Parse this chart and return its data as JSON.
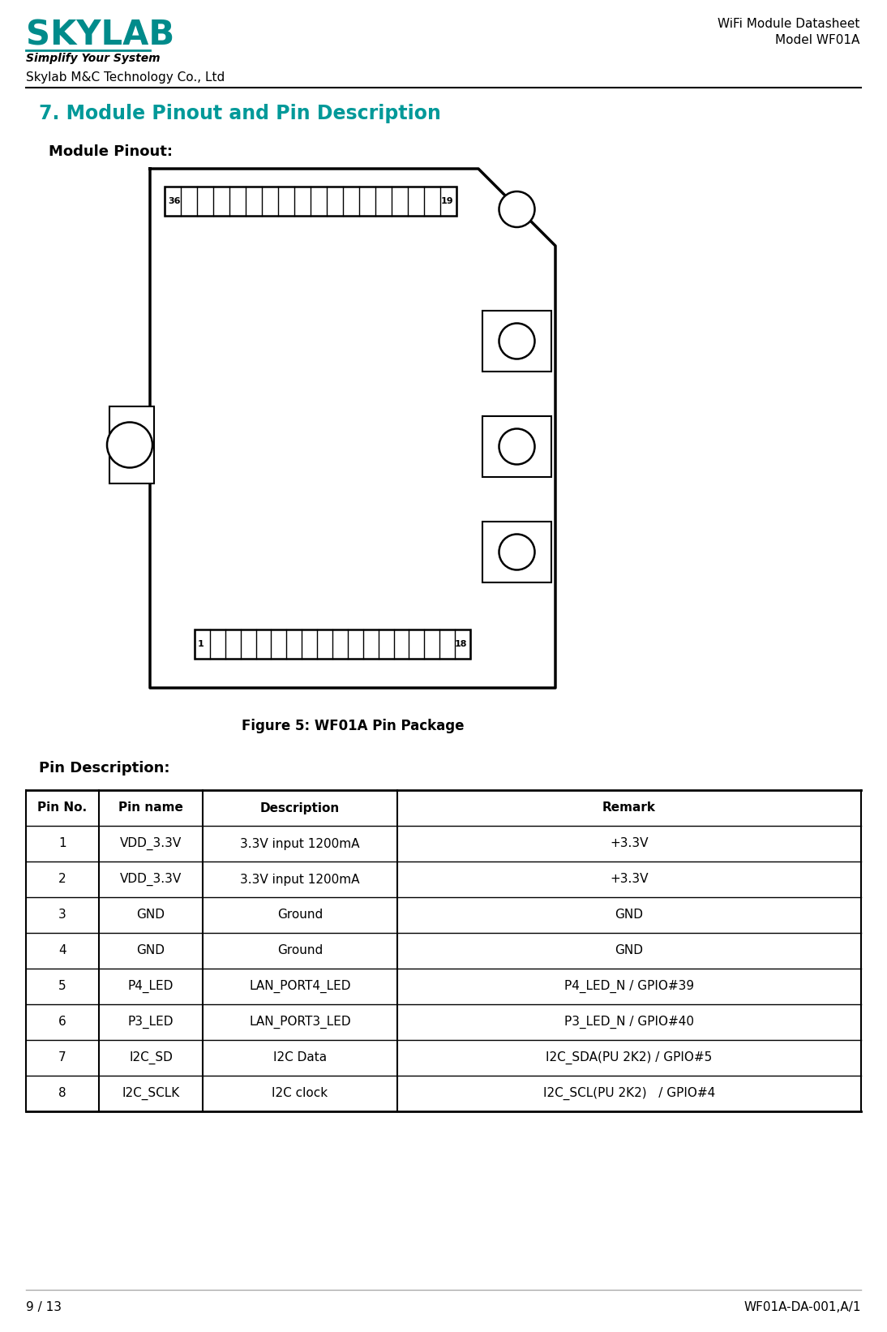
{
  "page_title": "7. Module Pinout and Pin Description",
  "section1_title": "Module Pinout:",
  "figure_caption": "Figure 5: WF01A Pin Package",
  "section2_title": "Pin Description:",
  "company_name": "Skylab M&C Technology Co., Ltd",
  "doc_type": "WiFi Module Datasheet",
  "model": "Model WF01A",
  "page_info": "9 / 13",
  "doc_code": "WF01A-DA-001,A/1",
  "table_headers": [
    "Pin No.",
    "Pin name",
    "Description",
    "Remark"
  ],
  "table_data": [
    [
      "1",
      "VDD_3.3V",
      "3.3V input 1200mA",
      "+3.3V"
    ],
    [
      "2",
      "VDD_3.3V",
      "3.3V input 1200mA",
      "+3.3V"
    ],
    [
      "3",
      "GND",
      "Ground",
      "GND"
    ],
    [
      "4",
      "GND",
      "Ground",
      "GND"
    ],
    [
      "5",
      "P4_LED",
      "LAN_PORT4_LED",
      "P4_LED_N / GPIO#39"
    ],
    [
      "6",
      "P3_LED",
      "LAN_PORT3_LED",
      "P3_LED_N / GPIO#40"
    ],
    [
      "7",
      "I2C_SD",
      "I2C Data",
      "I2C_SDA(PU 2K2) / GPIO#5"
    ],
    [
      "8",
      "I2C_SCLK",
      "I2C clock",
      "I2C_SCL(PU 2K2)   / GPIO#4"
    ]
  ],
  "skylab_color": "#008B8B",
  "title_teal": "#009999",
  "lw_outer": 2.5,
  "lw_inner": 1.5
}
